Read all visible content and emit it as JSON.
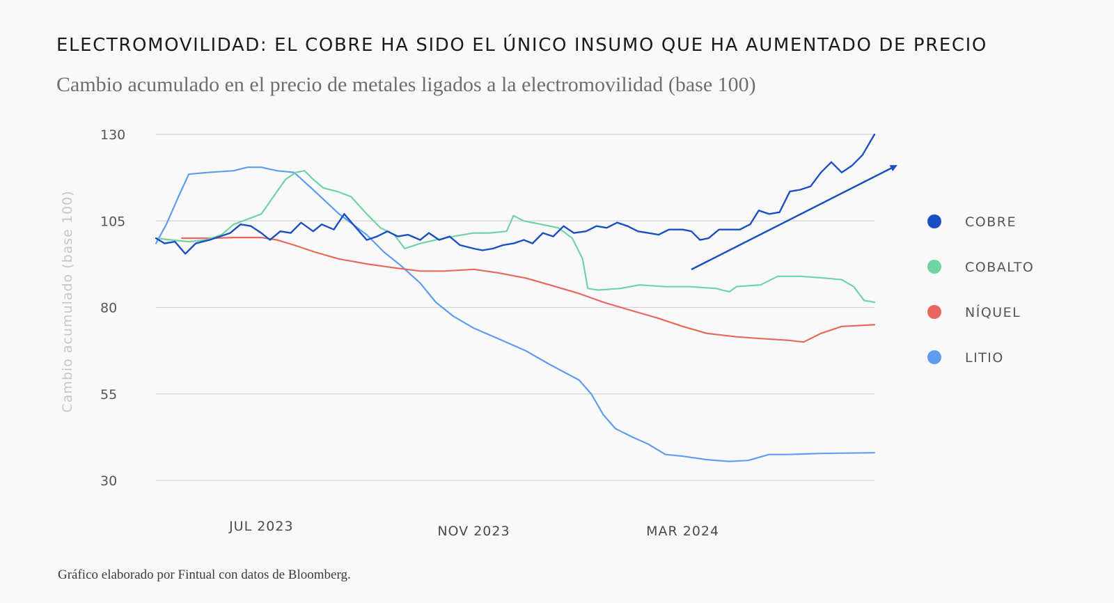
{
  "title": "ELECTROMOVILIDAD: EL COBRE HA SIDO EL ÚNICO INSUMO QUE HA AUMENTADO DE PRECIO",
  "subtitle": "Cambio acumulado en el precio de metales ligados a la electromovilidad (base 100)",
  "source": "Gráfico elaborado por Fintual con datos de Bloomberg.",
  "chart_data": {
    "type": "line",
    "ylabel": "Cambio acumulado (base 100)",
    "xlabel": "",
    "ylim": [
      30,
      130
    ],
    "yticks": [
      130,
      105,
      80,
      55,
      30
    ],
    "x_range": [
      "2023-05-01",
      "2024-06-20"
    ],
    "xticks": [
      {
        "date": "2023-07-01",
        "label": "JUL 2023"
      },
      {
        "date": "2023-11-01",
        "label": "NOV 2023"
      },
      {
        "date": "2024-03-01",
        "label": "MAR 2024"
      }
    ],
    "grid": true,
    "legend_position": "right",
    "annotation": "upward-trend-arrow",
    "arrow_color": "#1a4fc4",
    "series": [
      {
        "name": "COBRE",
        "color": "#1a4fc4",
        "points": [
          [
            "2023-05-01",
            100
          ],
          [
            "2023-05-06",
            98.5
          ],
          [
            "2023-05-12",
            99
          ],
          [
            "2023-05-18",
            95.5
          ],
          [
            "2023-05-24",
            98.5
          ],
          [
            "2023-06-01",
            99.5
          ],
          [
            "2023-06-07",
            100.5
          ],
          [
            "2023-06-13",
            101.5
          ],
          [
            "2023-06-19",
            104
          ],
          [
            "2023-06-25",
            103.5
          ],
          [
            "2023-07-01",
            101.5
          ],
          [
            "2023-07-06",
            99.5
          ],
          [
            "2023-07-12",
            102
          ],
          [
            "2023-07-18",
            101.5
          ],
          [
            "2023-07-24",
            104.5
          ],
          [
            "2023-07-31",
            102
          ],
          [
            "2023-08-05",
            104
          ],
          [
            "2023-08-12",
            102.5
          ],
          [
            "2023-08-18",
            107
          ],
          [
            "2023-08-24",
            103.5
          ],
          [
            "2023-08-31",
            99.5
          ],
          [
            "2023-09-06",
            100.5
          ],
          [
            "2023-09-12",
            102
          ],
          [
            "2023-09-18",
            100.5
          ],
          [
            "2023-09-24",
            101
          ],
          [
            "2023-10-01",
            99.5
          ],
          [
            "2023-10-06",
            101.5
          ],
          [
            "2023-10-12",
            99.5
          ],
          [
            "2023-10-18",
            100.5
          ],
          [
            "2023-10-24",
            98
          ],
          [
            "2023-11-01",
            97
          ],
          [
            "2023-11-06",
            96.5
          ],
          [
            "2023-11-12",
            97
          ],
          [
            "2023-11-18",
            98
          ],
          [
            "2023-11-24",
            98.5
          ],
          [
            "2023-11-30",
            99.5
          ],
          [
            "2023-12-05",
            98.5
          ],
          [
            "2023-12-11",
            101.5
          ],
          [
            "2023-12-17",
            100.5
          ],
          [
            "2023-12-23",
            103.5
          ],
          [
            "2023-12-29",
            101.5
          ],
          [
            "2024-01-05",
            102
          ],
          [
            "2024-01-11",
            103.5
          ],
          [
            "2024-01-17",
            103
          ],
          [
            "2024-01-23",
            104.5
          ],
          [
            "2024-01-29",
            103.5
          ],
          [
            "2024-02-04",
            102
          ],
          [
            "2024-02-10",
            101.5
          ],
          [
            "2024-02-16",
            101
          ],
          [
            "2024-02-22",
            102.5
          ],
          [
            "2024-03-01",
            102.5
          ],
          [
            "2024-03-06",
            102
          ],
          [
            "2024-03-11",
            99.5
          ],
          [
            "2024-03-16",
            100
          ],
          [
            "2024-03-22",
            102.5
          ],
          [
            "2024-03-28",
            102.5
          ],
          [
            "2024-04-03",
            102.5
          ],
          [
            "2024-04-09",
            104
          ],
          [
            "2024-04-14",
            108
          ],
          [
            "2024-04-20",
            107
          ],
          [
            "2024-04-26",
            107.5
          ],
          [
            "2024-05-02",
            113.5
          ],
          [
            "2024-05-08",
            114
          ],
          [
            "2024-05-14",
            115
          ],
          [
            "2024-05-20",
            119
          ],
          [
            "2024-05-26",
            122
          ],
          [
            "2024-06-01",
            119
          ],
          [
            "2024-06-07",
            121
          ],
          [
            "2024-06-13",
            124
          ],
          [
            "2024-06-20",
            130
          ]
        ]
      },
      {
        "name": "COBALTO",
        "color": "#6fd3a3",
        "points": [
          [
            "2023-05-01",
            100
          ],
          [
            "2023-05-10",
            99.5
          ],
          [
            "2023-05-20",
            99
          ],
          [
            "2023-05-30",
            99.5
          ],
          [
            "2023-06-08",
            101
          ],
          [
            "2023-06-15",
            104
          ],
          [
            "2023-06-23",
            105.5
          ],
          [
            "2023-07-01",
            107
          ],
          [
            "2023-07-08",
            112
          ],
          [
            "2023-07-15",
            117
          ],
          [
            "2023-07-21",
            119
          ],
          [
            "2023-07-26",
            119.5
          ],
          [
            "2023-07-31",
            117
          ],
          [
            "2023-08-06",
            114.5
          ],
          [
            "2023-08-14",
            113.5
          ],
          [
            "2023-08-22",
            112
          ],
          [
            "2023-08-31",
            107
          ],
          [
            "2023-09-08",
            103
          ],
          [
            "2023-09-16",
            101
          ],
          [
            "2023-09-22",
            97
          ],
          [
            "2023-10-01",
            98.5
          ],
          [
            "2023-10-10",
            99.5
          ],
          [
            "2023-10-20",
            100.5
          ],
          [
            "2023-11-01",
            101.5
          ],
          [
            "2023-11-10",
            101.5
          ],
          [
            "2023-11-20",
            102
          ],
          [
            "2023-11-24",
            106.5
          ],
          [
            "2023-11-30",
            105
          ],
          [
            "2023-12-10",
            104
          ],
          [
            "2023-12-20",
            103
          ],
          [
            "2023-12-28",
            100
          ],
          [
            "2024-01-03",
            94
          ],
          [
            "2024-01-06",
            85.5
          ],
          [
            "2024-01-12",
            85
          ],
          [
            "2024-01-25",
            85.5
          ],
          [
            "2024-02-05",
            86.5
          ],
          [
            "2024-02-20",
            86
          ],
          [
            "2024-03-05",
            86
          ],
          [
            "2024-03-20",
            85.5
          ],
          [
            "2024-03-28",
            84.5
          ],
          [
            "2024-04-01",
            86
          ],
          [
            "2024-04-15",
            86.5
          ],
          [
            "2024-04-25",
            89
          ],
          [
            "2024-05-08",
            89
          ],
          [
            "2024-05-22",
            88.5
          ],
          [
            "2024-06-01",
            88
          ],
          [
            "2024-06-08",
            86
          ],
          [
            "2024-06-14",
            82
          ],
          [
            "2024-06-20",
            81.5
          ]
        ]
      },
      {
        "name": "NÍQUEL",
        "color": "#e8675c",
        "points": [
          [
            "2023-05-16",
            100
          ],
          [
            "2023-06-01",
            100
          ],
          [
            "2023-06-15",
            100.2
          ],
          [
            "2023-07-01",
            100.2
          ],
          [
            "2023-07-10",
            99.5
          ],
          [
            "2023-07-20",
            98
          ],
          [
            "2023-08-01",
            96
          ],
          [
            "2023-08-15",
            94
          ],
          [
            "2023-09-01",
            92.5
          ],
          [
            "2023-09-15",
            91.5
          ],
          [
            "2023-10-01",
            90.5
          ],
          [
            "2023-10-15",
            90.5
          ],
          [
            "2023-11-01",
            91
          ],
          [
            "2023-11-15",
            90
          ],
          [
            "2023-12-01",
            88.5
          ],
          [
            "2023-12-15",
            86.5
          ],
          [
            "2024-01-01",
            84
          ],
          [
            "2024-01-15",
            81.5
          ],
          [
            "2024-02-01",
            79
          ],
          [
            "2024-02-15",
            77
          ],
          [
            "2024-03-01",
            74.5
          ],
          [
            "2024-03-15",
            72.5
          ],
          [
            "2024-04-01",
            71.5
          ],
          [
            "2024-04-15",
            71
          ],
          [
            "2024-05-01",
            70.5
          ],
          [
            "2024-05-10",
            70
          ],
          [
            "2024-05-20",
            72.5
          ],
          [
            "2024-06-01",
            74.5
          ],
          [
            "2024-06-20",
            75
          ]
        ]
      },
      {
        "name": "LITIO",
        "color": "#5e9cf0",
        "points": [
          [
            "2023-05-01",
            98.5
          ],
          [
            "2023-05-07",
            104
          ],
          [
            "2023-05-14",
            112
          ],
          [
            "2023-05-20",
            118.5
          ],
          [
            "2023-05-31",
            119
          ],
          [
            "2023-06-15",
            119.5
          ],
          [
            "2023-06-23",
            120.5
          ],
          [
            "2023-07-01",
            120.5
          ],
          [
            "2023-07-10",
            119.5
          ],
          [
            "2023-07-20",
            119
          ],
          [
            "2023-07-31",
            114
          ],
          [
            "2023-08-15",
            107
          ],
          [
            "2023-08-31",
            101
          ],
          [
            "2023-09-10",
            96
          ],
          [
            "2023-09-20",
            92
          ],
          [
            "2023-10-01",
            87
          ],
          [
            "2023-10-10",
            81.5
          ],
          [
            "2023-10-20",
            77.5
          ],
          [
            "2023-11-01",
            74
          ],
          [
            "2023-11-15",
            71
          ],
          [
            "2023-12-01",
            67.5
          ],
          [
            "2023-12-15",
            63.5
          ],
          [
            "2024-01-01",
            59
          ],
          [
            "2024-01-08",
            55
          ],
          [
            "2024-01-15",
            49
          ],
          [
            "2024-01-22",
            45
          ],
          [
            "2024-02-01",
            42.5
          ],
          [
            "2024-02-10",
            40.5
          ],
          [
            "2024-02-20",
            37.5
          ],
          [
            "2024-03-01",
            37
          ],
          [
            "2024-03-15",
            36
          ],
          [
            "2024-03-28",
            35.5
          ],
          [
            "2024-04-08",
            35.8
          ],
          [
            "2024-04-20",
            37.5
          ],
          [
            "2024-05-01",
            37.5
          ],
          [
            "2024-05-20",
            37.8
          ],
          [
            "2024-06-20",
            38
          ]
        ]
      }
    ]
  }
}
